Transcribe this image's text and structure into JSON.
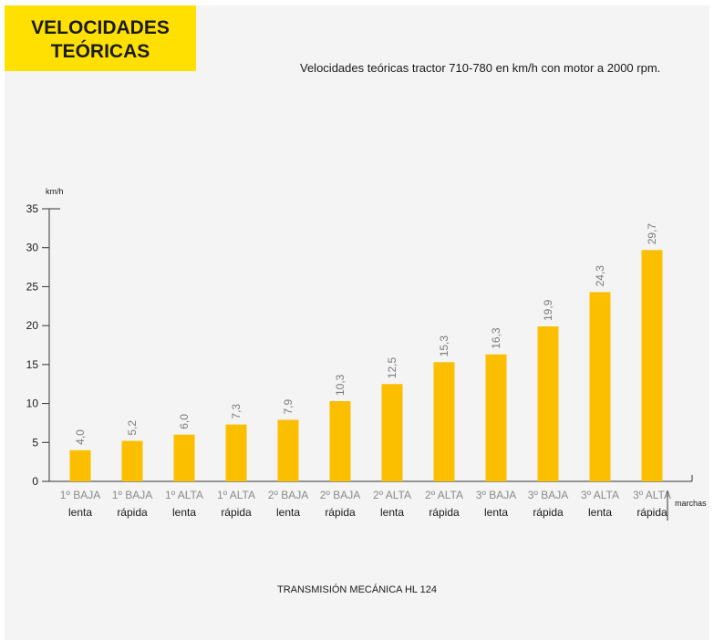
{
  "header": {
    "title_line1": "VELOCIDADES",
    "title_line2": "TEÓRICAS",
    "subtitle": "Velocidades teóricas tractor 710-780 en km/h con motor a 2000 rpm.",
    "footer": "TRANSMISIÓN MECÁNICA HL 124"
  },
  "colors": {
    "badge": "#ffe000",
    "bar": "#fbbf00",
    "background": "#f4f4f4"
  },
  "chart_data": {
    "type": "bar",
    "title": "",
    "ylabel": "km/h",
    "xlabel": "marchas",
    "ylim": [
      0,
      35
    ],
    "yticks": [
      0,
      5,
      10,
      15,
      20,
      25,
      30,
      35
    ],
    "grid": false,
    "categories": [
      {
        "line1": "1º BAJA",
        "line2": "lenta"
      },
      {
        "line1": "1º BAJA",
        "line2": "rápida"
      },
      {
        "line1": "1º ALTA",
        "line2": "lenta"
      },
      {
        "line1": "1º ALTA",
        "line2": "rápida"
      },
      {
        "line1": "2º BAJA",
        "line2": "lenta"
      },
      {
        "line1": "2º BAJA",
        "line2": "rápida"
      },
      {
        "line1": "2º ALTA",
        "line2": "lenta"
      },
      {
        "line1": "2º ALTA",
        "line2": "rápida"
      },
      {
        "line1": "3º BAJA",
        "line2": "lenta"
      },
      {
        "line1": "3º BAJA",
        "line2": "rápida"
      },
      {
        "line1": "3º ALTA",
        "line2": "lenta"
      },
      {
        "line1": "3º ALTA",
        "line2": "rápida"
      }
    ],
    "values": [
      4.0,
      5.2,
      6.0,
      7.3,
      7.9,
      10.3,
      12.5,
      15.3,
      16.3,
      19.9,
      24.3,
      29.7
    ],
    "value_labels": [
      "4,0",
      "5,2",
      "6,0",
      "7,3",
      "7,9",
      "10,3",
      "12,5",
      "15,3",
      "16,3",
      "19,9",
      "24,3",
      "29,7"
    ]
  }
}
